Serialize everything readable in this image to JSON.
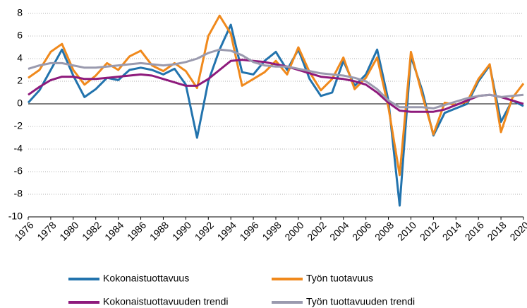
{
  "chart_data": {
    "type": "line",
    "x": [
      1976,
      1977,
      1978,
      1979,
      1980,
      1981,
      1982,
      1983,
      1984,
      1985,
      1986,
      1987,
      1988,
      1989,
      1990,
      1991,
      1992,
      1993,
      1994,
      1995,
      1996,
      1997,
      1998,
      1999,
      2000,
      2001,
      2002,
      2003,
      2004,
      2005,
      2006,
      2007,
      2008,
      2009,
      2010,
      2011,
      2012,
      2013,
      2014,
      2015,
      2016,
      2017,
      2018,
      2019,
      2020
    ],
    "series": [
      {
        "name": "Kokonaistuottavuus",
        "color": "#2273ad",
        "values": [
          0.1,
          1.2,
          3.0,
          4.8,
          2.5,
          0.6,
          1.3,
          2.3,
          2.1,
          3.0,
          3.2,
          3.0,
          2.6,
          3.1,
          1.7,
          -3.0,
          2.0,
          4.8,
          7.0,
          2.8,
          2.6,
          3.8,
          4.6,
          3.0,
          4.8,
          2.2,
          0.7,
          1.0,
          3.8,
          1.6,
          2.6,
          4.8,
          0.3,
          -9.0,
          4.2,
          1.2,
          -2.8,
          -0.8,
          -0.4,
          0.0,
          2.0,
          3.4,
          -1.6,
          0.3,
          -0.2
        ]
      },
      {
        "name": "Työn tuotavuus",
        "color": "#f0891c",
        "values": [
          2.3,
          3.0,
          4.6,
          5.3,
          3.0,
          1.7,
          2.5,
          3.6,
          3.0,
          4.2,
          4.7,
          3.4,
          2.9,
          3.6,
          2.9,
          1.4,
          6.0,
          7.8,
          6.2,
          1.6,
          2.2,
          2.8,
          3.8,
          2.6,
          5.0,
          2.8,
          1.2,
          2.2,
          4.1,
          1.3,
          2.3,
          4.1,
          -0.3,
          -6.3,
          4.6,
          0.8,
          -2.7,
          0.1,
          -0.1,
          0.2,
          2.2,
          3.5,
          -2.5,
          0.5,
          1.8
        ]
      },
      {
        "name": "Kokonaistuottavuuden trendi",
        "color": "#8e1a7c",
        "values": [
          0.8,
          1.5,
          2.1,
          2.4,
          2.4,
          2.2,
          2.2,
          2.3,
          2.4,
          2.5,
          2.6,
          2.5,
          2.2,
          1.9,
          1.6,
          1.6,
          2.2,
          3.0,
          3.8,
          3.9,
          3.8,
          3.7,
          3.5,
          3.3,
          3.0,
          2.7,
          2.4,
          2.3,
          2.2,
          2.0,
          1.7,
          1.0,
          0.1,
          -0.6,
          -0.7,
          -0.7,
          -0.7,
          -0.5,
          -0.1,
          0.3,
          0.7,
          0.8,
          0.6,
          0.3,
          0.0
        ]
      },
      {
        "name": "Työn tuottavuuden trendi",
        "color": "#9a9aae",
        "values": [
          3.1,
          3.4,
          3.6,
          3.6,
          3.4,
          3.2,
          3.2,
          3.3,
          3.4,
          3.5,
          3.6,
          3.5,
          3.4,
          3.5,
          3.7,
          4.0,
          4.5,
          4.8,
          4.7,
          4.3,
          3.7,
          3.4,
          3.3,
          3.3,
          3.1,
          2.9,
          2.7,
          2.6,
          2.5,
          2.3,
          2.0,
          1.3,
          0.3,
          -0.3,
          -0.3,
          -0.3,
          -0.4,
          -0.1,
          0.2,
          0.5,
          0.7,
          0.8,
          0.6,
          0.7,
          0.8
        ]
      }
    ],
    "xlim": [
      1976,
      2020
    ],
    "xticks": [
      1976,
      1978,
      1980,
      1982,
      1984,
      1986,
      1988,
      1990,
      1992,
      1994,
      1996,
      1998,
      2000,
      2002,
      2004,
      2006,
      2008,
      2010,
      2012,
      2014,
      2016,
      2018,
      2020
    ],
    "ylim": [
      -10,
      8
    ],
    "yticks": [
      -10,
      -8,
      -6,
      -4,
      -2,
      0,
      2,
      4,
      6,
      8
    ],
    "grid": true,
    "legend": "bottom"
  }
}
